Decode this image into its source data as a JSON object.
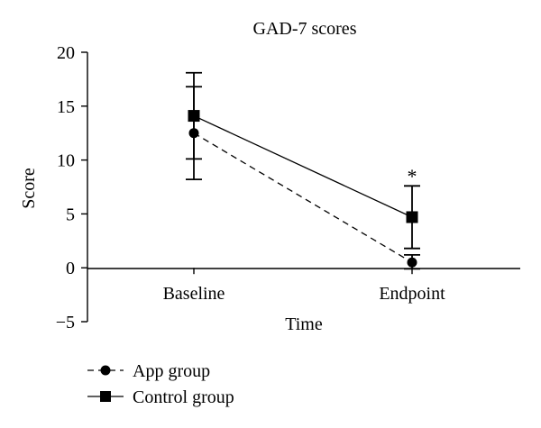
{
  "chart_data": {
    "type": "line",
    "title": "GAD-7 scores",
    "xlabel": "Time",
    "ylabel": "Score",
    "categories": [
      "Baseline",
      "Endpoint"
    ],
    "ylim": [
      -5,
      20
    ],
    "yticks": [
      -5,
      0,
      5,
      10,
      15,
      20
    ],
    "ytick_labels": [
      "−5",
      "0",
      "5",
      "10",
      "15",
      "20"
    ],
    "grid": false,
    "legend_position": "bottom-left",
    "series": [
      {
        "name": "App group",
        "marker": "circle",
        "line_style": "dashed",
        "values": [
          12.5,
          0.5
        ],
        "error_low": [
          8.2,
          -0.1
        ],
        "error_high": [
          16.8,
          1.2
        ]
      },
      {
        "name": "Control group",
        "marker": "square",
        "line_style": "solid",
        "values": [
          14.1,
          4.7
        ],
        "error_low": [
          10.1,
          1.8
        ],
        "error_high": [
          18.1,
          7.6
        ]
      }
    ],
    "annotations": [
      {
        "text": "*",
        "category": "Endpoint",
        "y": 8.7
      }
    ]
  }
}
